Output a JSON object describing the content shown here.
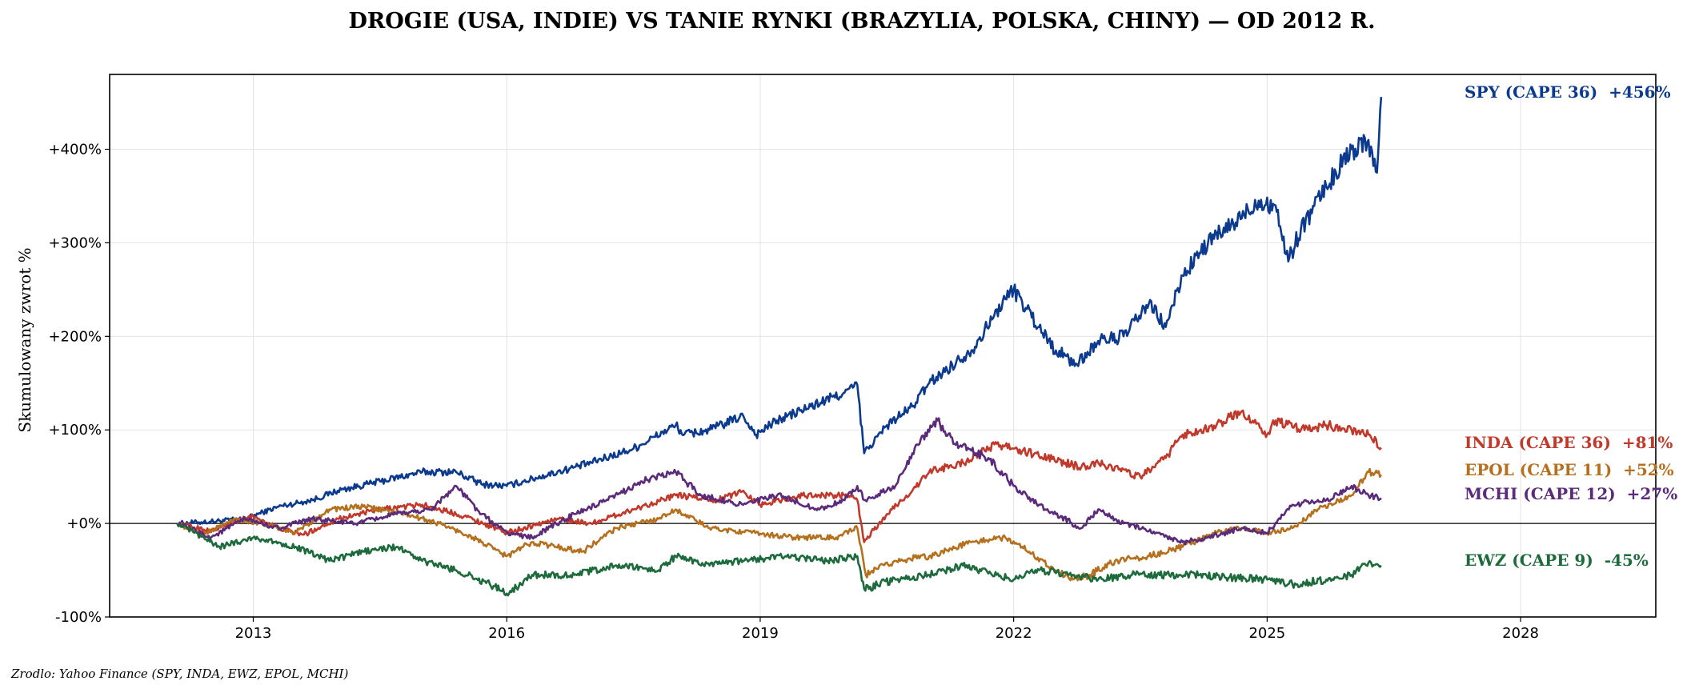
{
  "chart_data": {
    "type": "line",
    "title": "DROGIE (USA, INDIE) VS TANIE RYNKI (BRAZYLIA, POLSKA, CHINY) — OD 2012 R.",
    "ylabel": "Skumulowany zwrot %",
    "source": "Zrodlo: Yahoo Finance (SPY, INDA, EWZ, EPOL, MCHI)",
    "xlim": [
      2011.3,
      2029.6
    ],
    "ylim": [
      -100,
      480
    ],
    "x_ticks": [
      2013,
      2016,
      2019,
      2022,
      2025,
      2028
    ],
    "y_ticks": [
      {
        "value": -100,
        "label": "-100%"
      },
      {
        "value": 0,
        "label": "+0%"
      },
      {
        "value": 100,
        "label": "+100%"
      },
      {
        "value": 200,
        "label": "+200%"
      },
      {
        "value": 300,
        "label": "+300%"
      },
      {
        "value": 400,
        "label": "+400%"
      }
    ],
    "grid": true,
    "zero_line": true,
    "series": [
      {
        "name": "SPY (CAPE 36)",
        "end_label": "SPY (CAPE 36)  +456%",
        "color": "#0c3a8e",
        "x": [
          2012.1,
          2012.5,
          2012.9,
          2013.3,
          2013.7,
          2014.0,
          2014.5,
          2015.0,
          2015.4,
          2015.7,
          2016.0,
          2016.2,
          2016.6,
          2017.0,
          2017.5,
          2018.0,
          2018.1,
          2018.4,
          2018.8,
          2018.95,
          2019.2,
          2019.6,
          2020.0,
          2020.15,
          2020.23,
          2020.5,
          2020.8,
          2021.0,
          2021.5,
          2021.9,
          2022.0,
          2022.3,
          2022.5,
          2022.75,
          2023.0,
          2023.3,
          2023.6,
          2023.8,
          2024.0,
          2024.3,
          2024.6,
          2024.9,
          2025.1,
          2025.25,
          2025.4,
          2025.7,
          2026.0,
          2026.2,
          2026.3,
          2026.35
        ],
        "y": [
          0,
          2,
          5,
          18,
          25,
          35,
          45,
          55,
          55,
          42,
          40,
          45,
          55,
          65,
          80,
          105,
          95,
          100,
          115,
          95,
          110,
          125,
          140,
          148,
          75,
          105,
          125,
          150,
          185,
          240,
          250,
          210,
          185,
          170,
          195,
          200,
          235,
          210,
          265,
          300,
          320,
          345,
          340,
          280,
          315,
          360,
          400,
          410,
          375,
          456
        ]
      },
      {
        "name": "INDA (CAPE 36)",
        "end_label": "INDA (CAPE 36)  +81%",
        "color": "#c0392b",
        "x": [
          2012.1,
          2012.5,
          2012.8,
          2013.0,
          2013.3,
          2013.6,
          2014.0,
          2014.5,
          2015.0,
          2015.5,
          2016.0,
          2016.2,
          2016.6,
          2017.0,
          2017.5,
          2018.0,
          2018.5,
          2018.8,
          2019.0,
          2019.5,
          2020.0,
          2020.15,
          2020.23,
          2020.5,
          2020.8,
          2021.0,
          2021.4,
          2021.8,
          2022.0,
          2022.4,
          2022.8,
          2023.0,
          2023.5,
          2023.8,
          2024.0,
          2024.4,
          2024.7,
          2025.0,
          2025.1,
          2025.4,
          2025.7,
          2026.0,
          2026.2,
          2026.35
        ],
        "y": [
          0,
          -8,
          2,
          8,
          -5,
          -12,
          5,
          15,
          20,
          8,
          -10,
          -5,
          5,
          0,
          15,
          30,
          25,
          35,
          20,
          30,
          30,
          25,
          -20,
          10,
          35,
          55,
          65,
          85,
          80,
          70,
          60,
          65,
          50,
          70,
          95,
          105,
          120,
          95,
          110,
          100,
          105,
          100,
          95,
          81
        ]
      },
      {
        "name": "EPOL (CAPE 11)",
        "end_label": "EPOL (CAPE 11)  +52%",
        "color": "#b5701e",
        "x": [
          2012.1,
          2012.4,
          2012.8,
          2013.1,
          2013.5,
          2013.9,
          2014.3,
          2014.8,
          2015.2,
          2015.6,
          2016.0,
          2016.3,
          2016.9,
          2017.3,
          2017.8,
          2018.0,
          2018.4,
          2018.9,
          2019.4,
          2019.9,
          2020.15,
          2020.25,
          2020.6,
          2021.0,
          2021.5,
          2021.9,
          2022.1,
          2022.5,
          2022.7,
          2022.9,
          2023.2,
          2023.6,
          2024.0,
          2024.4,
          2024.7,
          2025.0,
          2025.3,
          2025.6,
          2026.0,
          2026.2,
          2026.35
        ],
        "y": [
          0,
          -12,
          5,
          0,
          -10,
          15,
          18,
          10,
          0,
          -15,
          -35,
          -20,
          -30,
          -5,
          5,
          15,
          -5,
          -10,
          -15,
          -15,
          -5,
          -55,
          -40,
          -35,
          -20,
          -15,
          -25,
          -50,
          -60,
          -55,
          -40,
          -35,
          -25,
          -10,
          -5,
          -10,
          -5,
          15,
          30,
          55,
          52
        ]
      },
      {
        "name": "MCHI (CAPE 12)",
        "end_label": "MCHI (CAPE 12)  +27%",
        "color": "#5b2a7a",
        "x": [
          2012.1,
          2012.5,
          2012.9,
          2013.3,
          2013.7,
          2014.2,
          2014.7,
          2015.1,
          2015.4,
          2015.7,
          2016.0,
          2016.3,
          2016.8,
          2017.2,
          2017.6,
          2018.0,
          2018.3,
          2018.8,
          2019.2,
          2019.7,
          2020.0,
          2020.15,
          2020.23,
          2020.6,
          2020.9,
          2021.1,
          2021.3,
          2021.7,
          2022.0,
          2022.3,
          2022.8,
          2023.0,
          2023.3,
          2023.7,
          2024.0,
          2024.3,
          2024.7,
          2025.0,
          2025.3,
          2025.7,
          2026.0,
          2026.2,
          2026.35
        ],
        "y": [
          0,
          -15,
          5,
          -5,
          5,
          0,
          10,
          15,
          40,
          10,
          -10,
          -15,
          10,
          25,
          45,
          55,
          30,
          20,
          30,
          15,
          25,
          40,
          25,
          40,
          90,
          110,
          85,
          70,
          40,
          20,
          -5,
          15,
          0,
          -10,
          -20,
          -15,
          -5,
          -10,
          20,
          25,
          40,
          30,
          27
        ]
      },
      {
        "name": "EWZ (CAPE 9)",
        "end_label": "EWZ (CAPE 9)  -45%",
        "color": "#1d6b3c",
        "x": [
          2012.1,
          2012.3,
          2012.6,
          2013.0,
          2013.5,
          2013.9,
          2014.3,
          2014.7,
          2015.0,
          2015.4,
          2015.8,
          2016.0,
          2016.3,
          2016.8,
          2017.3,
          2017.8,
          2018.0,
          2018.4,
          2018.8,
          2019.3,
          2019.8,
          2020.15,
          2020.23,
          2020.6,
          2021.0,
          2021.4,
          2021.8,
          2022.0,
          2022.3,
          2022.7,
          2023.0,
          2023.4,
          2023.8,
          2024.2,
          2024.6,
          2025.0,
          2025.3,
          2025.7,
          2026.0,
          2026.2,
          2026.35
        ],
        "y": [
          0,
          -10,
          -25,
          -15,
          -25,
          -40,
          -30,
          -25,
          -40,
          -50,
          -65,
          -75,
          -55,
          -55,
          -45,
          -50,
          -35,
          -45,
          -40,
          -35,
          -40,
          -35,
          -70,
          -60,
          -55,
          -45,
          -55,
          -60,
          -50,
          -55,
          -60,
          -55,
          -55,
          -55,
          -58,
          -60,
          -65,
          -60,
          -55,
          -42,
          -45
        ]
      }
    ]
  }
}
